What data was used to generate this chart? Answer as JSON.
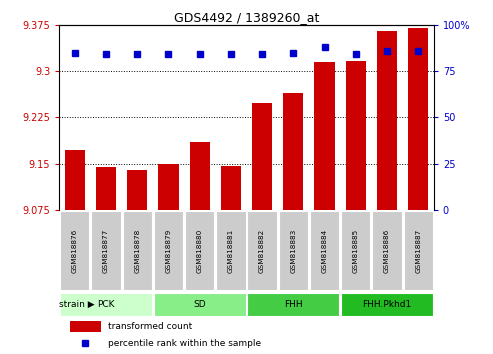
{
  "title": "GDS4492 / 1389260_at",
  "samples": [
    "GSM818876",
    "GSM818877",
    "GSM818878",
    "GSM818879",
    "GSM818880",
    "GSM818881",
    "GSM818882",
    "GSM818883",
    "GSM818884",
    "GSM818885",
    "GSM818886",
    "GSM818887"
  ],
  "bar_values": [
    9.172,
    9.145,
    9.14,
    9.15,
    9.185,
    9.146,
    9.248,
    9.265,
    9.315,
    9.317,
    9.365,
    9.37
  ],
  "percentile_values": [
    85,
    84,
    84,
    84,
    84,
    84,
    84,
    85,
    88,
    84,
    86,
    86
  ],
  "ymin": 9.075,
  "ymax": 9.375,
  "yticks": [
    9.075,
    9.15,
    9.225,
    9.3,
    9.375
  ],
  "yright_ticks": [
    0,
    25,
    50,
    75,
    100
  ],
  "bar_color": "#cc0000",
  "dot_color": "#0000cc",
  "bar_width": 0.65,
  "groups": [
    {
      "label": "PCK",
      "start": 0,
      "end": 3,
      "color": "#ccffcc"
    },
    {
      "label": "SD",
      "start": 3,
      "end": 6,
      "color": "#88ee88"
    },
    {
      "label": "FHH",
      "start": 6,
      "end": 9,
      "color": "#44cc44"
    },
    {
      "label": "FHH.Pkhd1",
      "start": 9,
      "end": 12,
      "color": "#22bb22"
    }
  ],
  "xlabel_color": "#cc0000",
  "dot_color_str": "#0000cc",
  "bg_color": "#ffffff",
  "tick_label_bg": "#cccccc",
  "grid_color": "#000000"
}
